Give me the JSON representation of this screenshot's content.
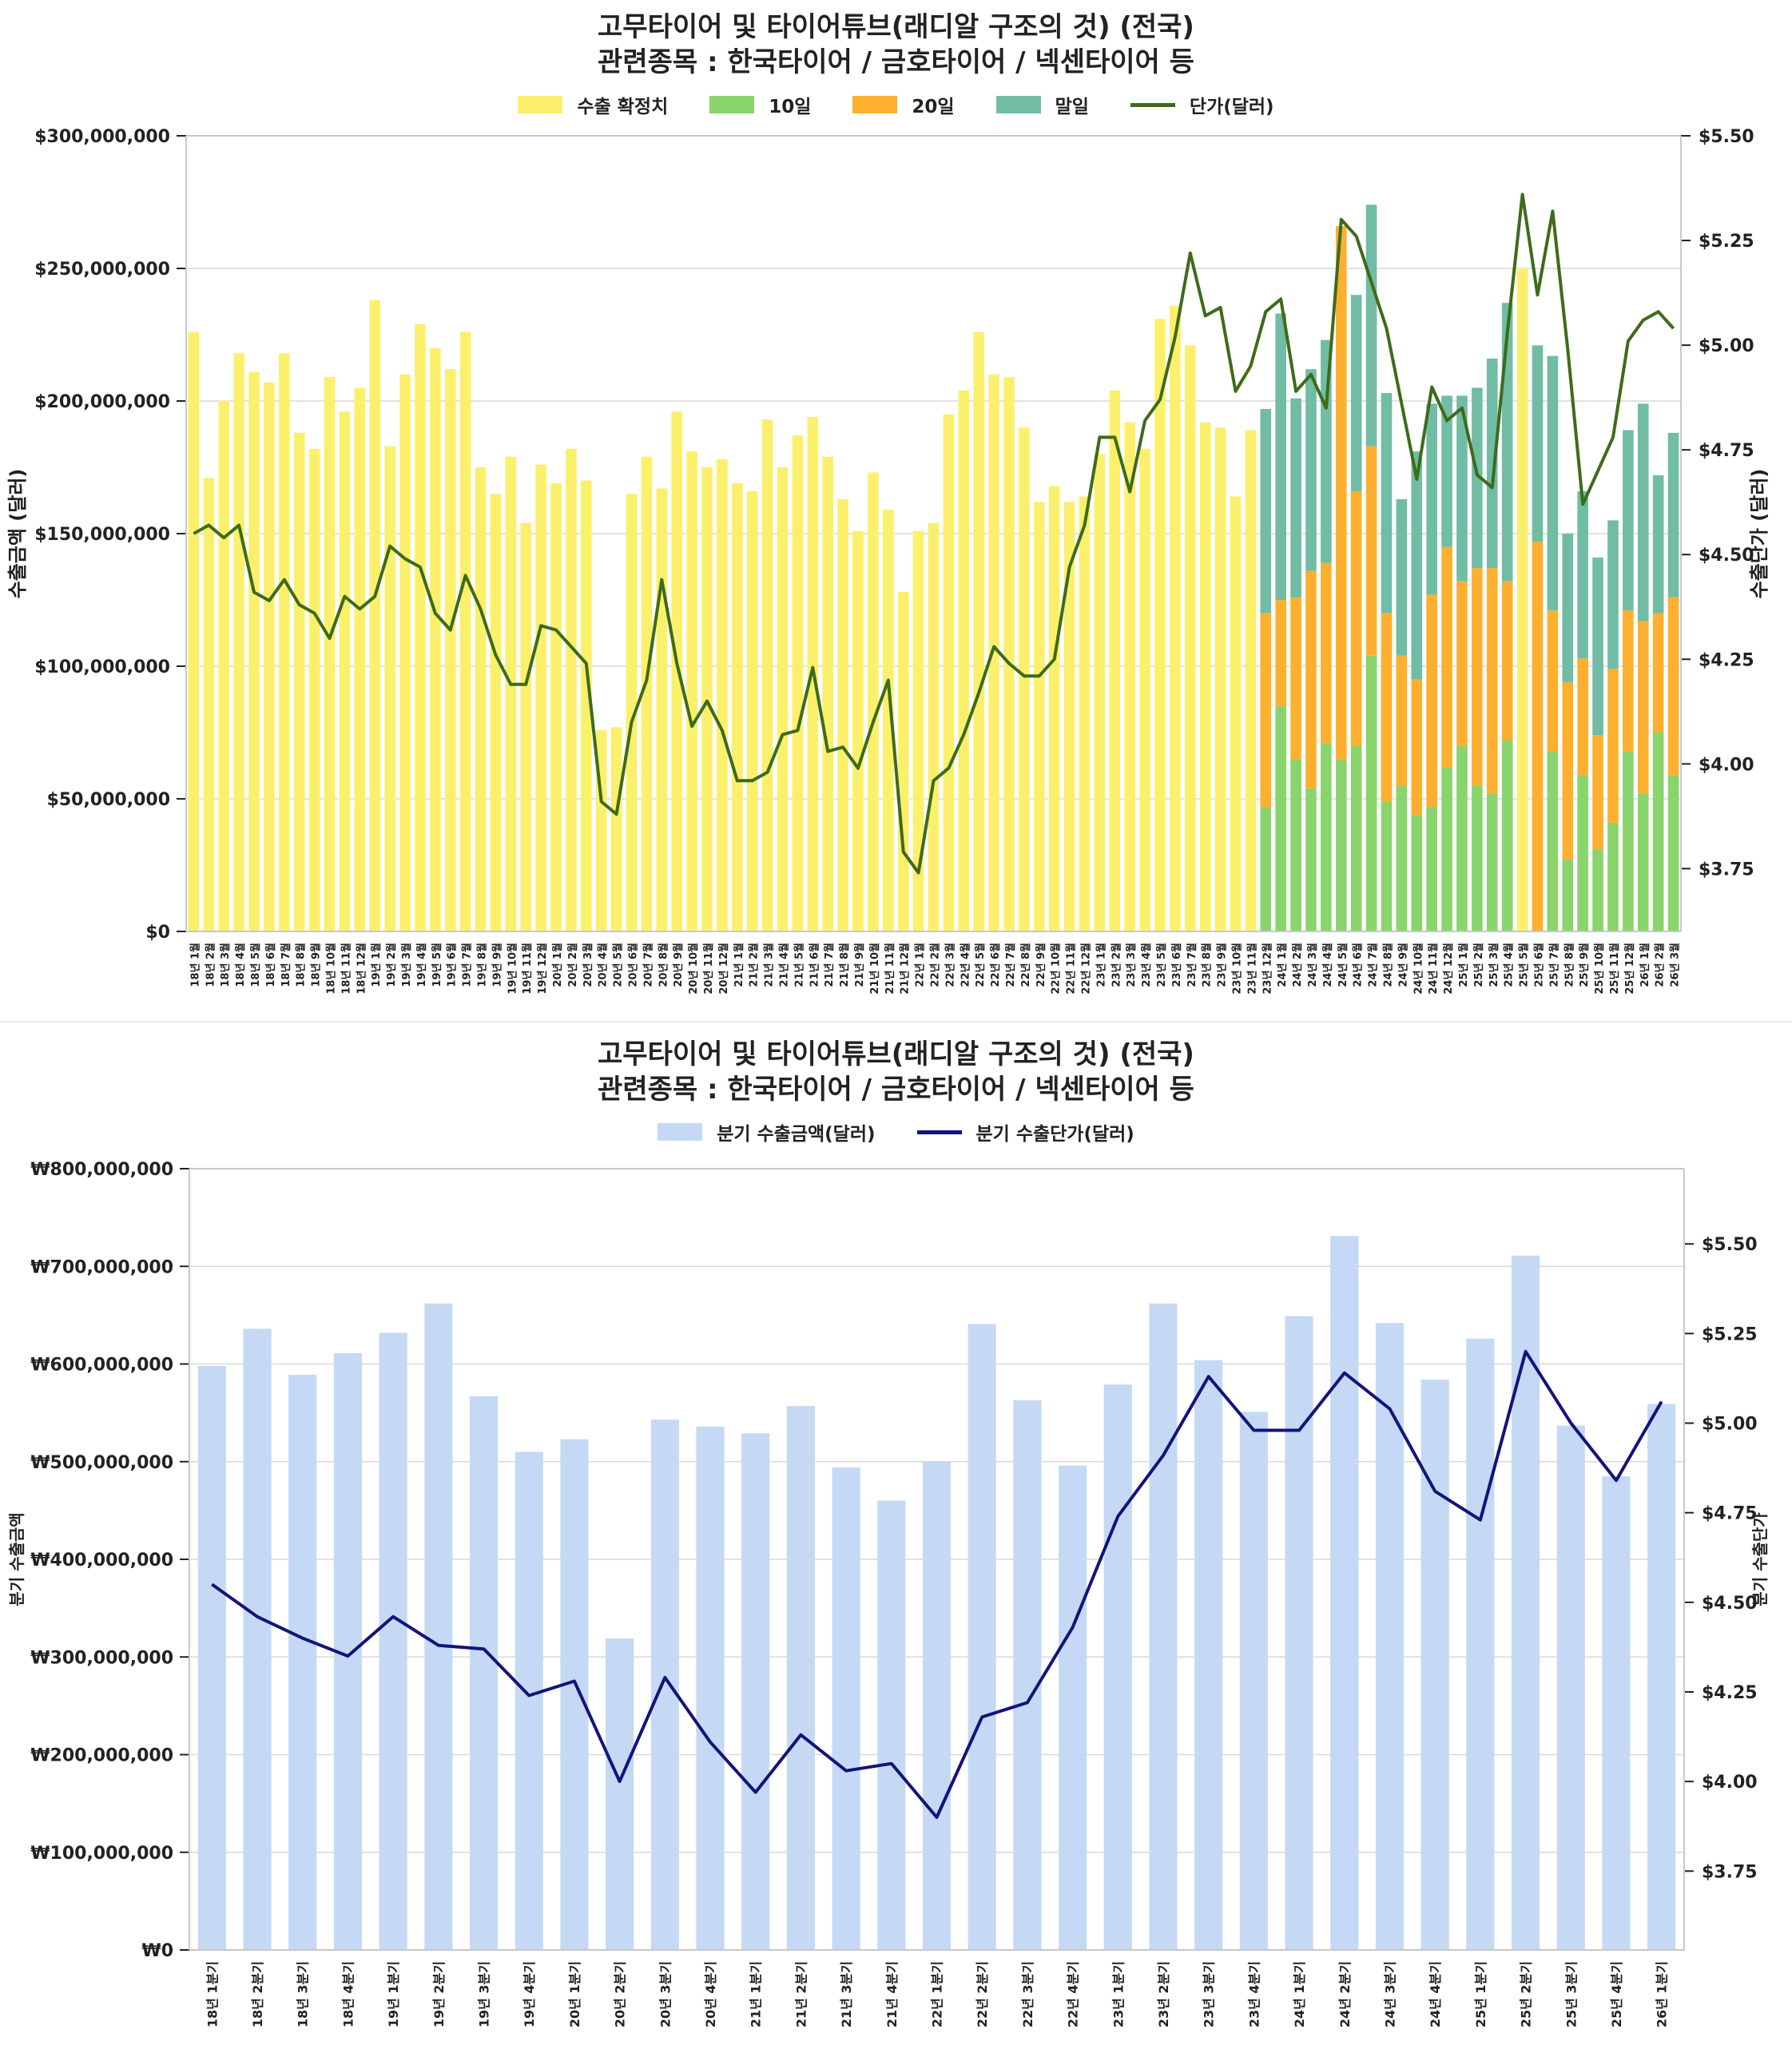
{
  "chart_data": [
    {
      "type": "bar",
      "stacked": true,
      "title": "고무타이어 및 타이어튜브(래디알 구조의 것) (전국)",
      "subtitle": "관련종목 : 한국타이어 / 금호타이어 / 넥센타이어 등",
      "ylabel": "수출금액 (달러)",
      "ylabel_right": "수출단가 (달러)",
      "ylim": [
        0,
        300000000
      ],
      "ylim_right": [
        3.6,
        5.5
      ],
      "yticks": [
        "$0",
        "$50,000,000",
        "$100,000,000",
        "$150,000,000",
        "$200,000,000",
        "$250,000,000",
        "$300,000,000"
      ],
      "yticks_right": [
        "$3.75",
        "$4.00",
        "$4.25",
        "$4.50",
        "$4.75",
        "$5.00",
        "$5.25",
        "$5.50"
      ],
      "grid": true,
      "legend_position": "top-center",
      "legend": [
        {
          "label": "수출 확정치",
          "color": "#fbf06b",
          "kind": "bar"
        },
        {
          "label": "10일",
          "color": "#89d46c",
          "kind": "bar"
        },
        {
          "label": "20일",
          "color": "#fdb02f",
          "kind": "bar"
        },
        {
          "label": "말일",
          "color": "#71bca4",
          "kind": "bar"
        },
        {
          "label": "단가(달러)",
          "color": "#3e6b1a",
          "kind": "line"
        }
      ],
      "categories": [
        "18년 1월",
        "18년 2월",
        "18년 3월",
        "18년 4월",
        "18년 5월",
        "18년 6월",
        "18년 7월",
        "18년 8월",
        "18년 9월",
        "18년 10월",
        "18년 11월",
        "18년 12월",
        "19년 1월",
        "19년 2월",
        "19년 3월",
        "19년 4월",
        "19년 5월",
        "19년 6월",
        "19년 7월",
        "19년 8월",
        "19년 9월",
        "19년 10월",
        "19년 11월",
        "19년 12월",
        "20년 1월",
        "20년 2월",
        "20년 3월",
        "20년 4월",
        "20년 5월",
        "20년 6월",
        "20년 7월",
        "20년 8월",
        "20년 9월",
        "20년 10월",
        "20년 11월",
        "20년 12월",
        "21년 1월",
        "21년 2월",
        "21년 3월",
        "21년 4월",
        "21년 5월",
        "21년 6월",
        "21년 7월",
        "21년 8월",
        "21년 9월",
        "21년 10월",
        "21년 11월",
        "21년 12월",
        "22년 1월",
        "22년 2월",
        "22년 3월",
        "22년 4월",
        "22년 5월",
        "22년 6월",
        "22년 7월",
        "22년 8월",
        "22년 9월",
        "22년 10월",
        "22년 11월",
        "22년 12월",
        "23년 1월",
        "23년 2월",
        "23년 3월",
        "23년 4월",
        "23년 5월",
        "23년 6월",
        "23년 7월",
        "23년 8월",
        "23년 9월",
        "23년 10월",
        "23년 11월",
        "23년 12월",
        "24년 1월",
        "24년 2월",
        "24년 3월",
        "24년 4월",
        "24년 5월",
        "24년 6월",
        "24년 7월",
        "24년 8월",
        "24년 9월",
        "24년 10월",
        "24년 11월",
        "24년 12월",
        "25년 1월",
        "25년 2월",
        "25년 3월",
        "25년 4월",
        "25년 5월",
        "25년 6월",
        "25년 7월",
        "25년 8월",
        "25년 9월",
        "25년 10월",
        "25년 11월",
        "25년 12월",
        "26년 1월",
        "26년 2월",
        "26년 3월"
      ],
      "series": [
        {
          "name": "수출 확정치",
          "values": [
            226000000,
            171000000,
            200000000,
            218000000,
            211000000,
            207000000,
            218000000,
            188000000,
            182000000,
            209000000,
            196000000,
            205000000,
            238000000,
            183000000,
            210000000,
            229000000,
            220000000,
            212000000,
            226000000,
            175000000,
            165000000,
            179000000,
            154000000,
            176000000,
            169000000,
            182000000,
            170000000,
            76000000,
            77000000,
            165000000,
            179000000,
            167000000,
            196000000,
            181000000,
            175000000,
            178000000,
            169000000,
            166000000,
            193000000,
            175000000,
            187000000,
            194000000,
            179000000,
            163000000,
            151000000,
            173000000,
            159000000,
            128000000,
            151000000,
            154000000,
            195000000,
            204000000,
            226000000,
            210000000,
            209000000,
            190000000,
            162000000,
            168000000,
            162000000,
            164000000,
            180000000,
            204000000,
            192000000,
            182000000,
            231000000,
            236000000,
            221000000,
            192000000,
            190000000,
            164000000,
            189000000,
            0,
            0,
            0,
            0,
            0,
            0,
            0,
            0,
            0,
            0,
            0,
            0,
            0,
            0,
            0,
            0,
            0,
            250000000,
            0,
            0,
            0,
            0,
            0,
            0,
            0,
            0,
            0,
            0
          ]
        },
        {
          "name": "10일",
          "values": [
            0,
            0,
            0,
            0,
            0,
            0,
            0,
            0,
            0,
            0,
            0,
            0,
            0,
            0,
            0,
            0,
            0,
            0,
            0,
            0,
            0,
            0,
            0,
            0,
            0,
            0,
            0,
            0,
            0,
            0,
            0,
            0,
            0,
            0,
            0,
            0,
            0,
            0,
            0,
            0,
            0,
            0,
            0,
            0,
            0,
            0,
            0,
            0,
            0,
            0,
            0,
            0,
            0,
            0,
            0,
            0,
            0,
            0,
            0,
            0,
            0,
            0,
            0,
            0,
            0,
            0,
            0,
            0,
            0,
            0,
            0,
            47000000,
            85000000,
            65000000,
            54000000,
            71000000,
            65000000,
            70000000,
            104000000,
            49000000,
            55000000,
            44000000,
            47000000,
            62000000,
            70000000,
            55000000,
            52000000,
            72000000,
            0,
            0,
            68000000,
            27000000,
            59000000,
            31000000,
            41000000,
            68000000,
            52000000,
            75000000,
            59000000
          ]
        },
        {
          "name": "20일",
          "values": [
            0,
            0,
            0,
            0,
            0,
            0,
            0,
            0,
            0,
            0,
            0,
            0,
            0,
            0,
            0,
            0,
            0,
            0,
            0,
            0,
            0,
            0,
            0,
            0,
            0,
            0,
            0,
            0,
            0,
            0,
            0,
            0,
            0,
            0,
            0,
            0,
            0,
            0,
            0,
            0,
            0,
            0,
            0,
            0,
            0,
            0,
            0,
            0,
            0,
            0,
            0,
            0,
            0,
            0,
            0,
            0,
            0,
            0,
            0,
            0,
            0,
            0,
            0,
            0,
            0,
            0,
            0,
            0,
            0,
            0,
            0,
            73000000,
            40000000,
            61000000,
            82000000,
            68000000,
            201000000,
            96000000,
            79000000,
            71000000,
            49000000,
            51000000,
            80000000,
            83000000,
            62000000,
            82000000,
            85000000,
            60000000,
            0,
            147000000,
            53000000,
            67000000,
            44000000,
            43000000,
            58000000,
            53000000,
            65000000,
            45000000,
            67000000
          ]
        },
        {
          "name": "말일",
          "values": [
            0,
            0,
            0,
            0,
            0,
            0,
            0,
            0,
            0,
            0,
            0,
            0,
            0,
            0,
            0,
            0,
            0,
            0,
            0,
            0,
            0,
            0,
            0,
            0,
            0,
            0,
            0,
            0,
            0,
            0,
            0,
            0,
            0,
            0,
            0,
            0,
            0,
            0,
            0,
            0,
            0,
            0,
            0,
            0,
            0,
            0,
            0,
            0,
            0,
            0,
            0,
            0,
            0,
            0,
            0,
            0,
            0,
            0,
            0,
            0,
            0,
            0,
            0,
            0,
            0,
            0,
            0,
            0,
            0,
            0,
            0,
            77000000,
            108000000,
            75000000,
            76000000,
            84000000,
            0,
            74000000,
            91000000,
            83000000,
            59000000,
            86000000,
            72000000,
            57000000,
            70000000,
            68000000,
            79000000,
            105000000,
            0,
            74000000,
            96000000,
            56000000,
            63000000,
            67000000,
            56000000,
            68000000,
            82000000,
            52000000,
            62000000
          ]
        },
        {
          "name": "단가(달러)",
          "axis": "right",
          "type": "line",
          "values": [
            4.55,
            4.57,
            4.54,
            4.57,
            4.41,
            4.39,
            4.44,
            4.38,
            4.36,
            4.3,
            4.4,
            4.37,
            4.4,
            4.52,
            4.49,
            4.47,
            4.36,
            4.32,
            4.45,
            4.37,
            4.26,
            4.19,
            4.19,
            4.33,
            4.32,
            4.28,
            4.24,
            3.91,
            3.88,
            4.1,
            4.2,
            4.44,
            4.24,
            4.09,
            4.15,
            4.08,
            3.96,
            3.96,
            3.98,
            4.07,
            4.08,
            4.23,
            4.03,
            4.04,
            3.99,
            4.1,
            4.2,
            3.79,
            3.74,
            3.96,
            3.99,
            4.07,
            4.17,
            4.28,
            4.24,
            4.21,
            4.21,
            4.25,
            4.47,
            4.57,
            4.78,
            4.78,
            4.65,
            4.82,
            4.87,
            5.02,
            5.22,
            5.07,
            5.09,
            4.89,
            4.95,
            5.08,
            5.11,
            4.89,
            4.93,
            4.85,
            5.3,
            5.26,
            5.15,
            5.04,
            4.86,
            4.68,
            4.9,
            4.82,
            4.85,
            4.69,
            4.66,
            5.03,
            5.36,
            5.12,
            5.32,
            4.99,
            4.62,
            4.7,
            4.78,
            5.01,
            5.06,
            5.08,
            5.04
          ]
        }
      ]
    },
    {
      "type": "bar",
      "title": "고무타이어 및 타이어튜브(래디알 구조의 것) (전국)",
      "subtitle": "관련종목 : 한국타이어 / 금호타이어 / 넥센타이어 등",
      "ylabel": "분기 수출금액",
      "ylabel_right": "분기 수출단가",
      "ylim": [
        0,
        800000000
      ],
      "ylim_right": [
        3.53,
        5.71
      ],
      "yticks": [
        "₩0",
        "₩100,000,000",
        "₩200,000,000",
        "₩300,000,000",
        "₩400,000,000",
        "₩500,000,000",
        "₩600,000,000",
        "₩700,000,000",
        "₩800,000,000"
      ],
      "yticks_right": [
        "$3.75",
        "$4.00",
        "$4.25",
        "$4.50",
        "$4.75",
        "$5.00",
        "$5.25",
        "$5.50"
      ],
      "grid": true,
      "legend_position": "top-center",
      "legend": [
        {
          "label": "분기 수출금액(달러)",
          "color": "#c5d9f5",
          "kind": "bar"
        },
        {
          "label": "분기 수출단가(달러)",
          "color": "#14137a",
          "kind": "line"
        }
      ],
      "categories": [
        "18년 1분기",
        "18년 2분기",
        "18년 3분기",
        "18년 4분기",
        "19년 1분기",
        "19년 2분기",
        "19년 3분기",
        "19년 4분기",
        "20년 1분기",
        "20년 2분기",
        "20년 3분기",
        "20년 4분기",
        "21년 1분기",
        "21년 2분기",
        "21년 3분기",
        "21년 4분기",
        "22년 1분기",
        "22년 2분기",
        "22년 3분기",
        "22년 4분기",
        "23년 1분기",
        "23년 2분기",
        "23년 3분기",
        "23년 4분기",
        "24년 1분기",
        "24년 2분기",
        "24년 3분기",
        "24년 4분기",
        "25년 1분기",
        "25년 2분기",
        "25년 3분기",
        "25년 4분기",
        "26년 1분기"
      ],
      "series": [
        {
          "name": "분기 수출금액(달러)",
          "values": [
            598000000,
            636000000,
            589000000,
            611000000,
            632000000,
            662000000,
            567000000,
            510000000,
            523000000,
            319000000,
            543000000,
            536000000,
            529000000,
            557000000,
            494000000,
            460000000,
            500000000,
            641000000,
            563000000,
            496000000,
            579000000,
            662000000,
            604000000,
            551000000,
            649000000,
            731000000,
            642000000,
            584000000,
            626000000,
            711000000,
            537000000,
            485000000,
            559000000
          ]
        },
        {
          "name": "분기 수출단가(달러)",
          "axis": "right",
          "type": "line",
          "values": [
            4.55,
            4.46,
            4.4,
            4.35,
            4.46,
            4.38,
            4.37,
            4.24,
            4.28,
            4.0,
            4.29,
            4.11,
            3.97,
            4.13,
            4.03,
            4.05,
            3.9,
            4.18,
            4.22,
            4.43,
            4.74,
            4.91,
            5.13,
            4.98,
            4.98,
            5.14,
            5.04,
            4.81,
            4.73,
            5.2,
            5.0,
            4.84,
            5.06
          ]
        }
      ]
    }
  ]
}
